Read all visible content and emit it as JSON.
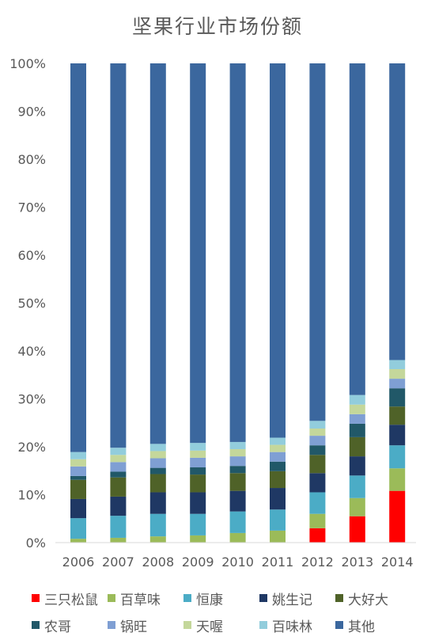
{
  "chart_data": {
    "type": "bar",
    "stacked": true,
    "title": "坚果行业市场份额",
    "xlabel": "",
    "ylabel": "",
    "ylim": [
      0,
      100
    ],
    "yticks": [
      "0%",
      "10%",
      "20%",
      "30%",
      "40%",
      "50%",
      "60%",
      "70%",
      "80%",
      "90%",
      "100%"
    ],
    "categories": [
      "2006",
      "2007",
      "2008",
      "2009",
      "2010",
      "2011",
      "2012",
      "2013",
      "2014"
    ],
    "series": [
      {
        "name": "三只松鼠",
        "color": "#ff0000",
        "values": [
          0,
          0,
          0,
          0,
          0,
          0,
          3.0,
          5.5,
          10.8
        ]
      },
      {
        "name": "百草味",
        "color": "#9bbb59",
        "values": [
          0.8,
          1.0,
          1.3,
          1.5,
          2.0,
          2.5,
          3.0,
          3.8,
          4.7
        ]
      },
      {
        "name": "恒康",
        "color": "#4bacc6",
        "values": [
          4.3,
          4.6,
          4.7,
          4.5,
          4.5,
          4.4,
          4.5,
          4.7,
          4.8
        ]
      },
      {
        "name": "姚生记",
        "color": "#1f3864",
        "values": [
          4.0,
          4.0,
          4.5,
          4.5,
          4.3,
          4.5,
          4.0,
          4.0,
          4.3
        ]
      },
      {
        "name": "大好大",
        "color": "#4f6228",
        "values": [
          4.0,
          4.0,
          3.8,
          3.7,
          3.7,
          3.5,
          3.8,
          4.0,
          3.8
        ]
      },
      {
        "name": "农哥",
        "color": "#215868",
        "values": [
          0.8,
          1.2,
          1.3,
          1.5,
          1.5,
          2.0,
          2.0,
          2.8,
          3.8
        ]
      },
      {
        "name": "锅旺",
        "color": "#7f9fd3",
        "values": [
          2.0,
          2.0,
          2.0,
          2.0,
          2.0,
          2.0,
          2.0,
          2.0,
          2.0
        ]
      },
      {
        "name": "天喔",
        "color": "#c4d79b",
        "values": [
          1.5,
          1.5,
          1.5,
          1.5,
          1.5,
          1.5,
          1.5,
          2.0,
          2.0
        ]
      },
      {
        "name": "百味林",
        "color": "#92cddc",
        "values": [
          1.5,
          1.5,
          1.5,
          1.6,
          1.5,
          1.5,
          1.6,
          2.0,
          1.9
        ]
      },
      {
        "name": "其他",
        "color": "#3b679e",
        "values": [
          81.1,
          80.2,
          79.4,
          79.2,
          79.0,
          78.1,
          74.6,
          69.2,
          61.9
        ]
      }
    ],
    "grid": false,
    "legend_position": "bottom"
  }
}
